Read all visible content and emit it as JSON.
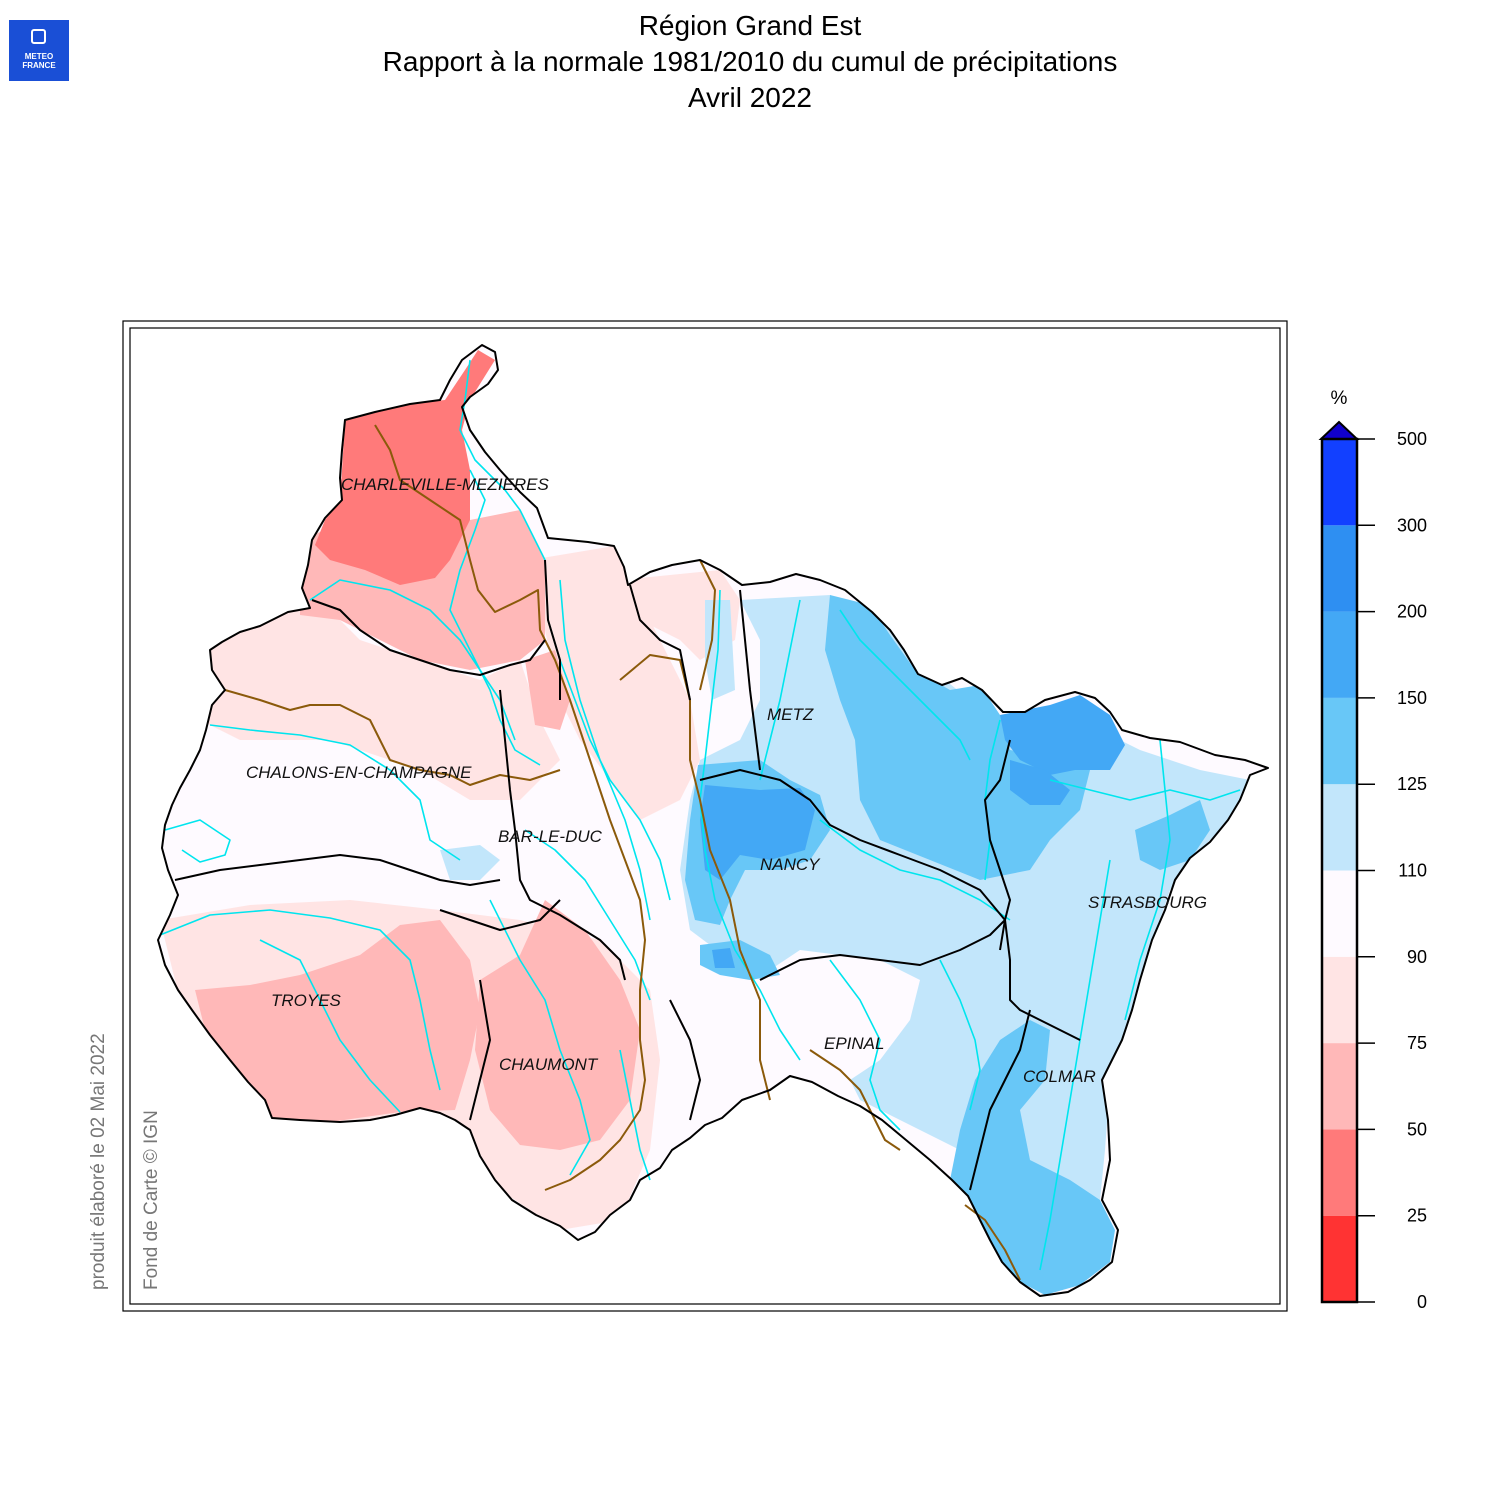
{
  "logo": {
    "line1": "METEO",
    "line2": "FRANCE",
    "icon": "meteo-france-logo"
  },
  "title": {
    "line1": "Région Grand Est",
    "line2": "Rapport à la normale 1981/2010 du cumul de précipitations",
    "line3": "Avril 2022"
  },
  "credits": {
    "produced": "produit élaboré le 02 Mai 2022",
    "basemap": "Fond de Carte © IGN"
  },
  "cities": {
    "charleville": "CHARLEVILLE-MEZIERES",
    "chalons": "CHALONS-EN-CHAMPAGNE",
    "metz": "METZ",
    "barleduc": "BAR-LE-DUC",
    "nancy": "NANCY",
    "strasbourg": "STRASBOURG",
    "troyes": "TROYES",
    "epinal": "EPINAL",
    "chaumont": "CHAUMONT",
    "colmar": "COLMAR"
  },
  "legend": {
    "unit": "%",
    "ticks": [
      "0",
      "25",
      "50",
      "75",
      "90",
      "110",
      "125",
      "150",
      "200",
      "300",
      "500"
    ],
    "bands": [
      {
        "from": 0,
        "to": 25,
        "color": "#ff3333"
      },
      {
        "from": 25,
        "to": 50,
        "color": "#ff7a7a"
      },
      {
        "from": 50,
        "to": 75,
        "color": "#ffb8b8"
      },
      {
        "from": 75,
        "to": 90,
        "color": "#ffe4e4"
      },
      {
        "from": 90,
        "to": 110,
        "color": "#fefaff"
      },
      {
        "from": 110,
        "to": 125,
        "color": "#c2e6fb"
      },
      {
        "from": 125,
        "to": 150,
        "color": "#68c7f7"
      },
      {
        "from": 150,
        "to": 200,
        "color": "#43a8f5"
      },
      {
        "from": 200,
        "to": 300,
        "color": "#2e8ff2"
      },
      {
        "from": 300,
        "to": 500,
        "color": "#1240ff"
      }
    ],
    "overflow_color": "#1100cc"
  },
  "colors": {
    "river": "#00e5ee",
    "dept_border": "#8b5a0b",
    "region_border": "#000000"
  }
}
